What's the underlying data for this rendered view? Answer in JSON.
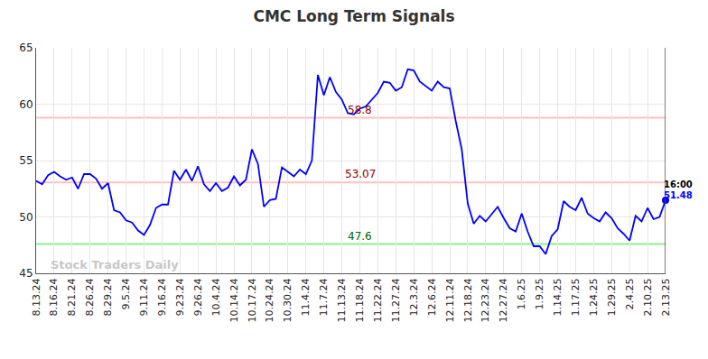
{
  "chart_data": {
    "type": "line",
    "title": "CMC Long Term Signals",
    "categories": [
      "8.13.24",
      null,
      null,
      "8.16.24",
      null,
      null,
      "8.21.24",
      null,
      null,
      "8.26.24",
      null,
      null,
      "8.29.24",
      null,
      null,
      "9.5.24",
      null,
      null,
      "9.11.24",
      null,
      null,
      "9.16.24",
      null,
      null,
      "9.23.24",
      null,
      null,
      "9.26.24",
      null,
      null,
      "10.4.24",
      null,
      null,
      "10.14.24",
      null,
      null,
      "10.17.24",
      null,
      null,
      "10.24.24",
      null,
      null,
      "10.30.24",
      null,
      null,
      "11.4.24",
      null,
      null,
      "11.7.24",
      null,
      null,
      "11.13.24",
      null,
      null,
      "11.18.24",
      null,
      null,
      "11.22.24",
      null,
      null,
      "11.27.24",
      null,
      null,
      "12.3.24",
      null,
      null,
      "12.6.24",
      null,
      null,
      "12.11.24",
      null,
      null,
      "12.18.24",
      null,
      null,
      "12.23.24",
      null,
      null,
      "12.27.24",
      null,
      null,
      "1.6.25",
      null,
      null,
      "1.9.25",
      null,
      null,
      "1.14.25",
      null,
      null,
      "1.17.25",
      null,
      null,
      "1.24.25",
      null,
      null,
      "1.29.25",
      null,
      null,
      "2.4.25",
      null,
      null,
      "2.10.25",
      null,
      null,
      "2.13.25"
    ],
    "values": [
      53.2,
      52.9,
      53.7,
      54.0,
      53.6,
      53.3,
      53.5,
      52.5,
      53.8,
      53.8,
      53.4,
      52.5,
      53.0,
      50.6,
      50.4,
      49.7,
      49.5,
      48.8,
      48.4,
      49.3,
      50.8,
      51.1,
      51.1,
      54.1,
      53.3,
      54.2,
      53.2,
      54.5,
      52.9,
      52.3,
      53.0,
      52.3,
      52.6,
      53.6,
      52.8,
      53.3,
      56.0,
      54.7,
      50.9,
      51.5,
      51.6,
      54.4,
      54.0,
      53.6,
      54.2,
      53.8,
      55.0,
      62.6,
      60.8,
      62.4,
      61.1,
      60.4,
      59.2,
      59.1,
      59.6,
      59.8,
      60.4,
      61.0,
      62.0,
      61.9,
      61.2,
      61.5,
      63.1,
      63.0,
      62.0,
      61.6,
      61.2,
      62.0,
      61.5,
      61.4,
      58.5,
      56.0,
      51.2,
      49.4,
      50.1,
      49.6,
      50.3,
      50.9,
      49.9,
      49.0,
      48.7,
      50.3,
      48.7,
      47.4,
      47.4,
      46.7,
      48.3,
      48.9,
      51.4,
      50.9,
      50.6,
      51.7,
      50.3,
      49.9,
      49.6,
      50.4,
      49.9,
      49.0,
      48.5,
      47.9,
      50.1,
      49.6,
      50.8,
      49.8,
      50.0,
      51.48
    ],
    "color": "#0000ff",
    "ylim": [
      45,
      65
    ],
    "yticks": [
      45,
      50,
      55,
      60,
      65
    ],
    "grid": true,
    "hlines": [
      {
        "value": 58.8,
        "label": "58.8",
        "color": "#ffc0c0",
        "label_color": "#8b0000"
      },
      {
        "value": 53.07,
        "label": "53.07",
        "color": "#ffc0c0",
        "label_color": "#8b0000"
      },
      {
        "value": 47.6,
        "label": "47.6",
        "color": "#90ee90",
        "label_color": "#006400"
      }
    ],
    "last_point_time": "16:00",
    "watermark": "Stock Traders Daily"
  }
}
